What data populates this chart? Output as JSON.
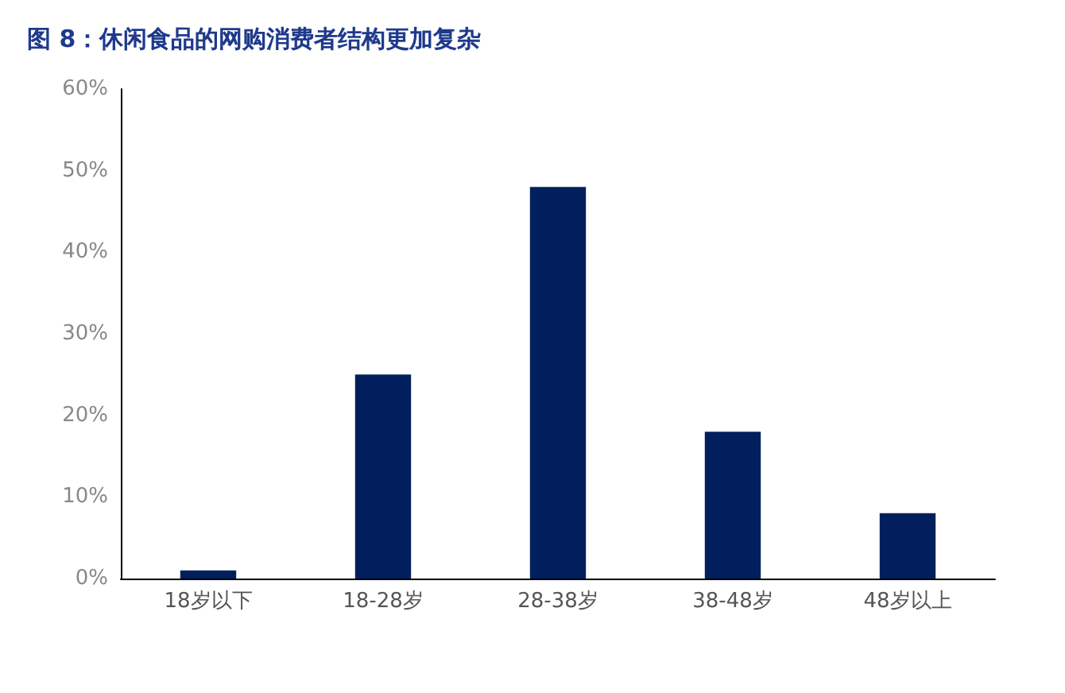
{
  "chart_data": {
    "type": "bar",
    "title": "图 8：休闲食品的网购消费者结构更加复杂",
    "categories": [
      "18岁以下",
      "18-28岁",
      "28-38岁",
      "38-48岁",
      "48岁以上"
    ],
    "values": [
      1,
      25,
      48,
      18,
      8
    ],
    "color": "#001f5c",
    "ylim": [
      0,
      60
    ],
    "yticks": [
      {
        "value": 0,
        "label": "0%"
      },
      {
        "value": 10,
        "label": "10%"
      },
      {
        "value": 20,
        "label": "20%"
      },
      {
        "value": 30,
        "label": "30%"
      },
      {
        "value": 40,
        "label": "40%"
      },
      {
        "value": 50,
        "label": "50%"
      },
      {
        "value": 60,
        "label": "60%"
      }
    ],
    "grid": false
  }
}
